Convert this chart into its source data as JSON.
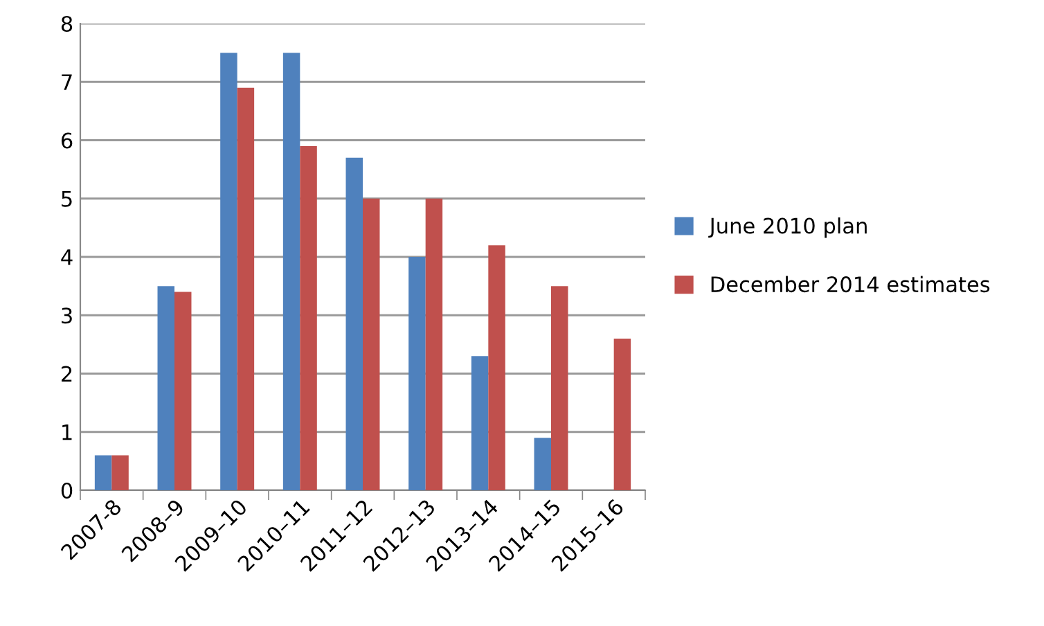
{
  "chart_data": {
    "type": "bar",
    "categories": [
      "2007-8",
      "2008–9",
      "2009–10",
      "2010–11",
      "2011–12",
      "2012–13",
      "2013–14",
      "2014–15",
      "2015–16"
    ],
    "series": [
      {
        "name": "June 2010 plan",
        "color": "#4f81bd",
        "values": [
          0.6,
          3.5,
          7.5,
          7.5,
          5.7,
          4.0,
          2.3,
          0.9,
          null
        ]
      },
      {
        "name": "December 2014 estimates",
        "color": "#c0504d",
        "values": [
          0.6,
          3.4,
          6.9,
          5.9,
          5.0,
          5.0,
          4.2,
          3.5,
          2.6
        ]
      }
    ],
    "ylim": [
      0,
      8
    ],
    "yticks": [
      0,
      1,
      2,
      3,
      4,
      5,
      6,
      7,
      8
    ],
    "grid": "y",
    "legend": "right"
  }
}
